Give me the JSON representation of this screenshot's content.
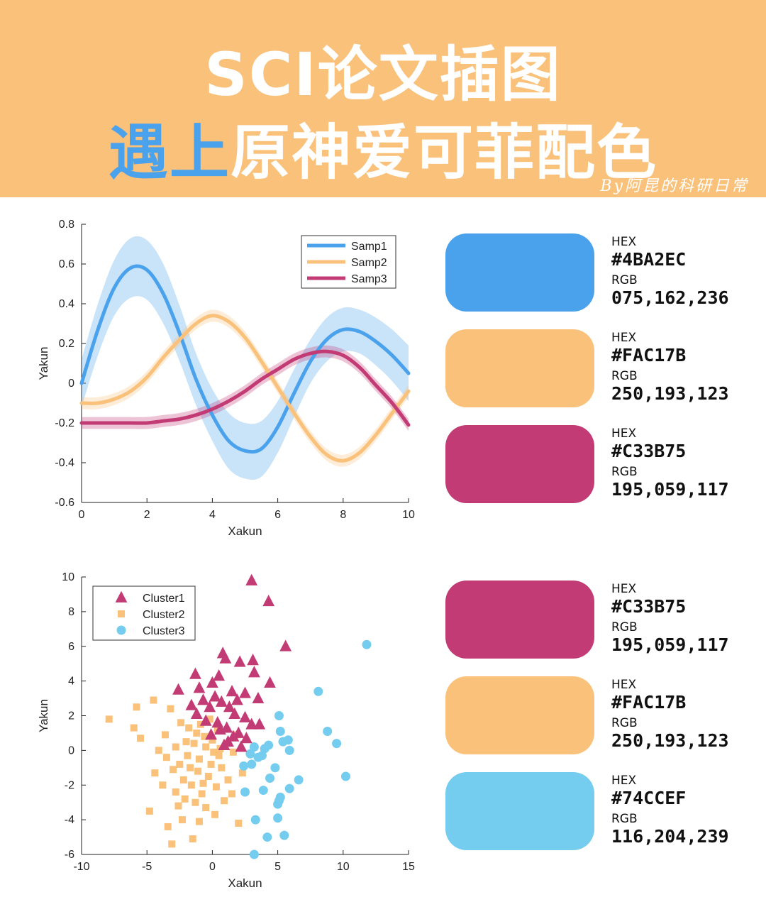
{
  "header": {
    "title_line1": "SCI论文插图",
    "title_line2_highlight": "遇上",
    "title_line2_rest": "原神爱可菲配色",
    "byline": "By阿昆的科研日常",
    "background": "#FAC17B"
  },
  "swatches_top": [
    {
      "hex_label": "HEX",
      "hex": "#4BA2EC",
      "rgb_label": "RGB",
      "rgb": "075,162,236",
      "color": "#4BA2EC"
    },
    {
      "hex_label": "HEX",
      "hex": "#FAC17B",
      "rgb_label": "RGB",
      "rgb": "250,193,123",
      "color": "#FAC17B"
    },
    {
      "hex_label": "HEX",
      "hex": "#C33B75",
      "rgb_label": "RGB",
      "rgb": "195,059,117",
      "color": "#C33B75"
    }
  ],
  "swatches_bottom": [
    {
      "hex_label": "HEX",
      "hex": "#C33B75",
      "rgb_label": "RGB",
      "rgb": "195,059,117",
      "color": "#C33B75"
    },
    {
      "hex_label": "HEX",
      "hex": "#FAC17B",
      "rgb_label": "RGB",
      "rgb": "250,193,123",
      "color": "#FAC17B"
    },
    {
      "hex_label": "HEX",
      "hex": "#74CCEF",
      "rgb_label": "RGB",
      "rgb": "116,204,239",
      "color": "#74CCEF"
    }
  ],
  "chart_data": [
    {
      "type": "line",
      "xlabel": "Xakun",
      "ylabel": "Yakun",
      "xlim": [
        0,
        10
      ],
      "ylim": [
        -0.6,
        0.8
      ],
      "xticks": [
        0,
        2,
        4,
        6,
        8,
        10
      ],
      "yticks": [
        -0.6,
        -0.4,
        -0.2,
        0,
        0.2,
        0.4,
        0.6,
        0.8
      ],
      "legend_position": "top-right",
      "x": [
        0,
        0.5,
        1,
        1.5,
        2,
        2.5,
        3,
        3.5,
        4,
        4.5,
        5,
        5.5,
        6,
        6.5,
        7,
        7.5,
        8,
        8.5,
        9,
        9.5,
        10
      ],
      "series": [
        {
          "name": "Samp1",
          "color": "#4BA2EC",
          "values": [
            0.0,
            0.27,
            0.48,
            0.58,
            0.57,
            0.45,
            0.25,
            0.02,
            -0.16,
            -0.29,
            -0.34,
            -0.33,
            -0.22,
            -0.05,
            0.11,
            0.22,
            0.27,
            0.26,
            0.21,
            0.14,
            0.05
          ],
          "band": [
            0.12,
            0.13,
            0.14,
            0.15,
            0.15,
            0.15,
            0.14,
            0.13,
            0.13,
            0.14,
            0.14,
            0.14,
            0.13,
            0.12,
            0.11,
            0.11,
            0.11,
            0.11,
            0.12,
            0.13,
            0.14
          ]
        },
        {
          "name": "Samp2",
          "color": "#FAC17B",
          "values": [
            -0.1,
            -0.1,
            -0.08,
            -0.04,
            0.03,
            0.13,
            0.22,
            0.3,
            0.34,
            0.31,
            0.23,
            0.11,
            -0.02,
            -0.15,
            -0.27,
            -0.36,
            -0.39,
            -0.35,
            -0.26,
            -0.15,
            -0.04
          ],
          "band": [
            0.03,
            0.03,
            0.03,
            0.03,
            0.03,
            0.03,
            0.03,
            0.03,
            0.03,
            0.03,
            0.03,
            0.03,
            0.03,
            0.03,
            0.03,
            0.03,
            0.03,
            0.03,
            0.03,
            0.03,
            0.03
          ]
        },
        {
          "name": "Samp3",
          "color": "#C33B75",
          "values": [
            -0.2,
            -0.2,
            -0.2,
            -0.2,
            -0.2,
            -0.19,
            -0.18,
            -0.16,
            -0.13,
            -0.09,
            -0.04,
            0.02,
            0.07,
            0.12,
            0.15,
            0.16,
            0.14,
            0.08,
            -0.01,
            -0.1,
            -0.21
          ],
          "band": [
            0.03,
            0.03,
            0.03,
            0.03,
            0.03,
            0.03,
            0.03,
            0.03,
            0.03,
            0.03,
            0.03,
            0.03,
            0.03,
            0.03,
            0.03,
            0.03,
            0.03,
            0.03,
            0.03,
            0.03,
            0.03
          ]
        }
      ]
    },
    {
      "type": "scatter",
      "xlabel": "Xakun",
      "ylabel": "Yakun",
      "xlim": [
        -10,
        15
      ],
      "ylim": [
        -6,
        10
      ],
      "xticks": [
        -10,
        -5,
        0,
        5,
        10,
        15
      ],
      "yticks": [
        -6,
        -4,
        -2,
        0,
        2,
        4,
        6,
        8,
        10
      ],
      "legend_position": "top-left",
      "series": [
        {
          "name": "Cluster1",
          "marker": "triangle",
          "color": "#C33B75",
          "points": [
            [
              3.0,
              9.8
            ],
            [
              4.3,
              8.6
            ],
            [
              5.6,
              6.0
            ],
            [
              0.8,
              5.6
            ],
            [
              1.0,
              5.3
            ],
            [
              -1.3,
              4.4
            ],
            [
              2.1,
              5.1
            ],
            [
              3.1,
              5.2
            ],
            [
              3.2,
              4.5
            ],
            [
              -2.6,
              3.5
            ],
            [
              -1.0,
              3.6
            ],
            [
              0.0,
              3.9
            ],
            [
              0.5,
              4.3
            ],
            [
              1.5,
              3.4
            ],
            [
              2.5,
              3.3
            ],
            [
              4.4,
              3.9
            ],
            [
              3.5,
              3.0
            ],
            [
              -1.6,
              2.6
            ],
            [
              -1.2,
              2.1
            ],
            [
              -0.2,
              2.5
            ],
            [
              0.7,
              2.8
            ],
            [
              1.7,
              2.1
            ],
            [
              2.5,
              1.9
            ],
            [
              3.0,
              1.5
            ],
            [
              3.6,
              1.5
            ],
            [
              -0.5,
              1.7
            ],
            [
              0.4,
              1.6
            ],
            [
              1.1,
              1.3
            ],
            [
              1.6,
              0.8
            ],
            [
              1.2,
              0.5
            ],
            [
              0.6,
              1.2
            ],
            [
              -0.1,
              0.9
            ],
            [
              2.0,
              1.0
            ],
            [
              2.6,
              0.7
            ],
            [
              1.3,
              2.5
            ],
            [
              0.2,
              3.1
            ],
            [
              -0.7,
              2.9
            ],
            [
              1.9,
              2.9
            ],
            [
              0.9,
              0.3
            ],
            [
              2.2,
              0.2
            ]
          ]
        },
        {
          "name": "Cluster2",
          "marker": "square",
          "color": "#FAC17B",
          "points": [
            [
              -7.9,
              1.8
            ],
            [
              -5.8,
              2.5
            ],
            [
              -4.5,
              2.9
            ],
            [
              -3.2,
              2.4
            ],
            [
              -6.0,
              1.3
            ],
            [
              -5.5,
              0.7
            ],
            [
              -4.1,
              0.0
            ],
            [
              -3.5,
              -0.4
            ],
            [
              -4.4,
              -1.3
            ],
            [
              -2.8,
              -2.4
            ],
            [
              -4.8,
              -3.5
            ],
            [
              -3.4,
              -4.4
            ],
            [
              -3.1,
              -5.4
            ],
            [
              -1.5,
              -5.1
            ],
            [
              -2.3,
              -4.0
            ],
            [
              0.2,
              -3.7
            ],
            [
              1.5,
              -2.5
            ],
            [
              2.0,
              -4.2
            ],
            [
              -1.7,
              -1.0
            ],
            [
              -1.0,
              -0.5
            ],
            [
              -0.5,
              0.2
            ],
            [
              0.0,
              0.6
            ],
            [
              0.5,
              -0.3
            ],
            [
              -2.0,
              0.5
            ],
            [
              -2.5,
              -0.8
            ],
            [
              -1.2,
              1.0
            ],
            [
              -0.3,
              -1.5
            ],
            [
              0.7,
              -1.0
            ],
            [
              1.1,
              0.4
            ],
            [
              1.6,
              -0.1
            ],
            [
              -1.6,
              -2.0
            ],
            [
              -0.8,
              -2.5
            ],
            [
              0.3,
              -2.1
            ],
            [
              -2.2,
              -1.7
            ],
            [
              -1.3,
              -3.0
            ],
            [
              -0.5,
              -3.3
            ],
            [
              -2.8,
              0.2
            ],
            [
              -3.0,
              -1.1
            ],
            [
              -0.9,
              1.5
            ],
            [
              -1.8,
              1.3
            ],
            [
              0.4,
              1.2
            ],
            [
              1.2,
              -1.7
            ],
            [
              -2.4,
              1.6
            ],
            [
              -0.1,
              -0.8
            ],
            [
              -3.6,
              0.9
            ],
            [
              -1.9,
              -0.3
            ],
            [
              0.9,
              -2.9
            ],
            [
              -1.0,
              -4.1
            ],
            [
              2.3,
              -1.3
            ],
            [
              -2.6,
              -3.2
            ],
            [
              -0.6,
              0.8
            ],
            [
              0.1,
              -0.1
            ],
            [
              -1.4,
              0.4
            ],
            [
              -2.1,
              -2.8
            ],
            [
              1.9,
              0.9
            ],
            [
              -0.2,
              1.8
            ],
            [
              -3.8,
              -2.0
            ],
            [
              -1.1,
              -1.2
            ],
            [
              0.6,
              0.1
            ],
            [
              -0.7,
              -1.9
            ]
          ]
        },
        {
          "name": "Cluster3",
          "marker": "circle",
          "color": "#74CCEF",
          "points": [
            [
              11.8,
              6.1
            ],
            [
              8.1,
              3.4
            ],
            [
              8.8,
              1.1
            ],
            [
              9.5,
              0.4
            ],
            [
              10.2,
              -1.5
            ],
            [
              5.1,
              2.0
            ],
            [
              5.2,
              1.1
            ],
            [
              5.4,
              0.5
            ],
            [
              5.9,
              0.0
            ],
            [
              5.8,
              0.6
            ],
            [
              3.2,
              0.2
            ],
            [
              4.0,
              0.1
            ],
            [
              4.3,
              0.3
            ],
            [
              3.5,
              -0.4
            ],
            [
              2.4,
              -0.9
            ],
            [
              3.0,
              -0.8
            ],
            [
              4.4,
              -1.6
            ],
            [
              6.6,
              -1.7
            ],
            [
              5.9,
              -2.2
            ],
            [
              5.2,
              -2.7
            ],
            [
              5.0,
              -3.1
            ],
            [
              3.9,
              -2.3
            ],
            [
              2.5,
              -2.4
            ],
            [
              3.3,
              -4.0
            ],
            [
              5.0,
              -3.9
            ],
            [
              5.5,
              -4.9
            ],
            [
              4.2,
              -5.0
            ],
            [
              3.2,
              -6.0
            ],
            [
              5.1,
              -2.9
            ],
            [
              4.8,
              -1.0
            ],
            [
              3.8,
              -0.3
            ],
            [
              2.9,
              -0.2
            ]
          ]
        }
      ]
    }
  ]
}
